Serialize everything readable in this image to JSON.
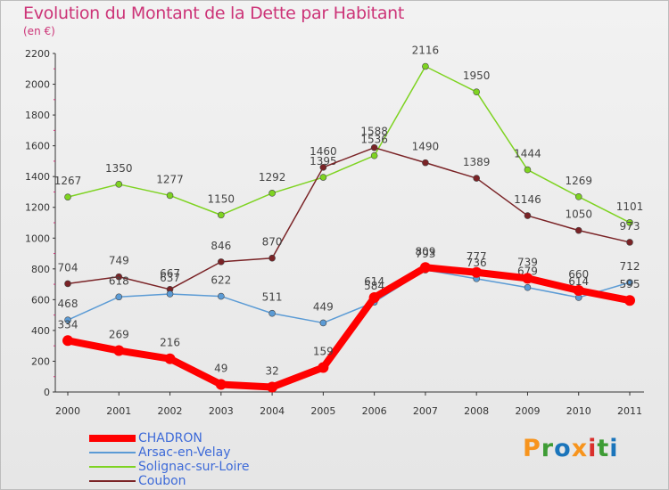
{
  "header": {
    "title": "Evolution du Montant de la Dette par Habitant",
    "unit": "(en €)"
  },
  "logo": {
    "text": "Proxiti",
    "colors": [
      "#f7941d",
      "#3e9c35",
      "#1b75bb",
      "#f7941d",
      "#d9302c",
      "#3e9c35",
      "#1b75bb"
    ]
  },
  "chart_data": {
    "type": "line",
    "x": [
      "2000",
      "2001",
      "2002",
      "2003",
      "2004",
      "2005",
      "2006",
      "2007",
      "2008",
      "2009",
      "2010",
      "2011"
    ],
    "ylim": [
      0,
      2200
    ],
    "yticks": [
      0,
      200,
      400,
      600,
      800,
      1000,
      1200,
      1400,
      1600,
      1800,
      2000,
      2200
    ],
    "grid": false,
    "legend_position": "bottom-left",
    "series": [
      {
        "name": "CHADRON",
        "color": "#ff0000",
        "values": [
          334,
          269,
          216,
          49,
          32,
          159,
          614,
          809,
          777,
          739,
          660,
          595
        ]
      },
      {
        "name": "Arsac-en-Velay",
        "color": "#5b9bd5",
        "values": [
          468,
          618,
          637,
          622,
          511,
          449,
          584,
          793,
          736,
          679,
          614,
          712
        ]
      },
      {
        "name": "Solignac-sur-Loire",
        "color": "#7ed321",
        "values": [
          1267,
          1350,
          1277,
          1150,
          1292,
          1395,
          1536,
          2116,
          1950,
          1444,
          1269,
          1101
        ]
      },
      {
        "name": "Coubon",
        "color": "#7a2326",
        "values": [
          704,
          749,
          667,
          846,
          870,
          1460,
          1588,
          1490,
          1389,
          1146,
          1050,
          973
        ]
      }
    ]
  }
}
